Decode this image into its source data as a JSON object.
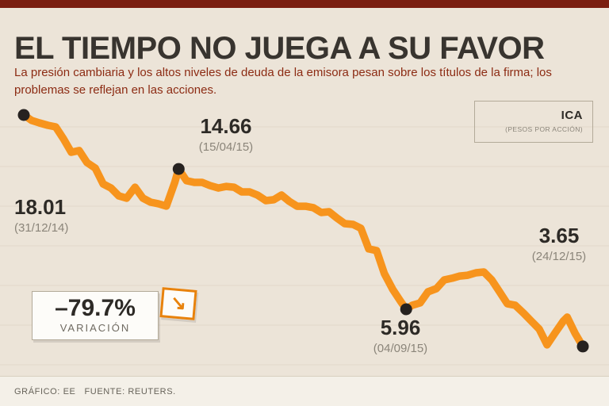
{
  "header": {
    "title": "EL TIEMPO NO JUEGA A SU FAVOR",
    "subtitle": "La presión cambiaria y los altos niveles de deuda de la emisora pesan sobre los títulos de la firma; los problemas se reflejan en las acciones."
  },
  "badge": {
    "ticker": "ICA",
    "unit": "(PESOS POR ACCIÓN)"
  },
  "variation": {
    "value": "–79.7%",
    "label": "VARIACIÓN"
  },
  "footer": {
    "credit": "GRÁFICO: EE   FUENTE: REUTERS."
  },
  "chart_data": {
    "type": "line",
    "title": "EL TIEMPO NO JUEGA A SU FAVOR",
    "ylabel": "pesos por acción",
    "color": "#f7941d",
    "ylim": [
      2,
      19
    ],
    "x_range": [
      "31/12/14",
      "24/12/15"
    ],
    "key_points": [
      {
        "t": 0.0,
        "price": 18.01,
        "value": "18.01",
        "date": "(31/12/14)"
      },
      {
        "t": 0.277,
        "price": 14.66,
        "value": "14.66",
        "date": "(15/04/15)"
      },
      {
        "t": 0.684,
        "price": 5.96,
        "value": "5.96",
        "date": "(04/09/15)"
      },
      {
        "t": 1.0,
        "price": 3.65,
        "value": "3.65",
        "date": "(24/12/15)"
      }
    ],
    "points": [
      [
        0.0,
        18.01
      ],
      [
        0.014,
        17.67
      ],
      [
        0.028,
        17.52
      ],
      [
        0.043,
        17.37
      ],
      [
        0.057,
        17.27
      ],
      [
        0.071,
        16.53
      ],
      [
        0.085,
        15.7
      ],
      [
        0.099,
        15.8
      ],
      [
        0.113,
        15.06
      ],
      [
        0.128,
        14.71
      ],
      [
        0.142,
        13.73
      ],
      [
        0.156,
        13.48
      ],
      [
        0.17,
        12.99
      ],
      [
        0.184,
        12.85
      ],
      [
        0.199,
        13.53
      ],
      [
        0.213,
        12.85
      ],
      [
        0.227,
        12.6
      ],
      [
        0.241,
        12.5
      ],
      [
        0.255,
        12.36
      ],
      [
        0.27,
        13.83
      ],
      [
        0.277,
        14.66
      ],
      [
        0.291,
        13.93
      ],
      [
        0.305,
        13.83
      ],
      [
        0.319,
        13.83
      ],
      [
        0.333,
        13.63
      ],
      [
        0.348,
        13.48
      ],
      [
        0.362,
        13.58
      ],
      [
        0.376,
        13.53
      ],
      [
        0.39,
        13.24
      ],
      [
        0.404,
        13.24
      ],
      [
        0.418,
        13.04
      ],
      [
        0.433,
        12.7
      ],
      [
        0.447,
        12.75
      ],
      [
        0.461,
        13.04
      ],
      [
        0.475,
        12.65
      ],
      [
        0.489,
        12.35
      ],
      [
        0.504,
        12.35
      ],
      [
        0.518,
        12.26
      ],
      [
        0.532,
        11.96
      ],
      [
        0.546,
        12.01
      ],
      [
        0.56,
        11.62
      ],
      [
        0.574,
        11.27
      ],
      [
        0.589,
        11.22
      ],
      [
        0.603,
        10.98
      ],
      [
        0.617,
        9.7
      ],
      [
        0.631,
        9.6
      ],
      [
        0.645,
        8.17
      ],
      [
        0.66,
        7.19
      ],
      [
        0.674,
        6.45
      ],
      [
        0.684,
        5.96
      ],
      [
        0.695,
        6.21
      ],
      [
        0.709,
        6.35
      ],
      [
        0.723,
        7.04
      ],
      [
        0.738,
        7.24
      ],
      [
        0.752,
        7.78
      ],
      [
        0.766,
        7.88
      ],
      [
        0.78,
        8.02
      ],
      [
        0.794,
        8.07
      ],
      [
        0.809,
        8.22
      ],
      [
        0.823,
        8.27
      ],
      [
        0.837,
        7.78
      ],
      [
        0.851,
        7.04
      ],
      [
        0.865,
        6.3
      ],
      [
        0.879,
        6.21
      ],
      [
        0.894,
        5.72
      ],
      [
        0.908,
        5.22
      ],
      [
        0.922,
        4.73
      ],
      [
        0.936,
        3.75
      ],
      [
        0.95,
        4.48
      ],
      [
        0.965,
        5.22
      ],
      [
        0.972,
        5.47
      ],
      [
        0.986,
        4.48
      ],
      [
        1.0,
        3.65
      ]
    ]
  }
}
